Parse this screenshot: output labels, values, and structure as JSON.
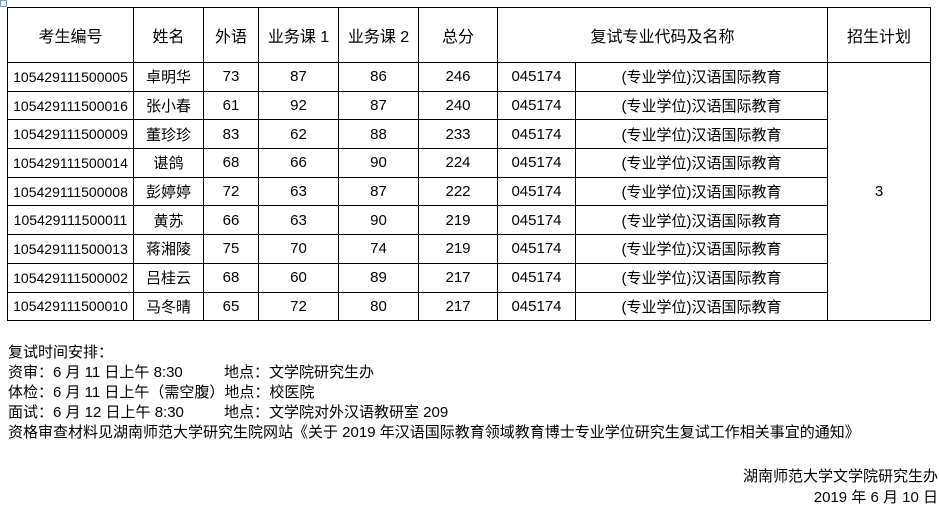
{
  "table": {
    "headers": [
      "考生编号",
      "姓名",
      "外语",
      "业务课 1",
      "业务课 2",
      "总分",
      "复试专业代码及名称",
      "招生计划"
    ],
    "rows": [
      {
        "id": "105429111500005",
        "name": "卓明华",
        "foreign": "73",
        "course1": "87",
        "course2": "86",
        "total": "246",
        "major_code": "045174",
        "major_name": "(专业学位)汉语国际教育"
      },
      {
        "id": "105429111500016",
        "name": "张小春",
        "foreign": "61",
        "course1": "92",
        "course2": "87",
        "total": "240",
        "major_code": "045174",
        "major_name": "(专业学位)汉语国际教育"
      },
      {
        "id": "105429111500009",
        "name": "董珍珍",
        "foreign": "83",
        "course1": "62",
        "course2": "88",
        "total": "233",
        "major_code": "045174",
        "major_name": "(专业学位)汉语国际教育"
      },
      {
        "id": "105429111500014",
        "name": "谌鸽",
        "foreign": "68",
        "course1": "66",
        "course2": "90",
        "total": "224",
        "major_code": "045174",
        "major_name": "(专业学位)汉语国际教育"
      },
      {
        "id": "105429111500008",
        "name": "彭婷婷",
        "foreign": "72",
        "course1": "63",
        "course2": "87",
        "total": "222",
        "major_code": "045174",
        "major_name": "(专业学位)汉语国际教育"
      },
      {
        "id": "105429111500011",
        "name": "黄苏",
        "foreign": "66",
        "course1": "63",
        "course2": "90",
        "total": "219",
        "major_code": "045174",
        "major_name": "(专业学位)汉语国际教育"
      },
      {
        "id": "105429111500013",
        "name": "蒋湘陵",
        "foreign": "75",
        "course1": "70",
        "course2": "74",
        "total": "219",
        "major_code": "045174",
        "major_name": "(专业学位)汉语国际教育"
      },
      {
        "id": "105429111500002",
        "name": "吕桂云",
        "foreign": "68",
        "course1": "60",
        "course2": "89",
        "total": "217",
        "major_code": "045174",
        "major_name": "(专业学位)汉语国际教育"
      },
      {
        "id": "105429111500010",
        "name": "马冬晴",
        "foreign": "65",
        "course1": "72",
        "course2": "80",
        "total": "217",
        "major_code": "045174",
        "major_name": "(专业学位)汉语国际教育"
      }
    ],
    "enrollment_plan": "3"
  },
  "notes": {
    "schedule_title": "复试时间安排：",
    "items": [
      {
        "time": "资审：6 月 11 日上午 8:30",
        "place": "地点：文学院研究生办"
      },
      {
        "time": "体检：6 月 11 日上午（需空腹）",
        "place": "地点：校医院"
      },
      {
        "time": "面试：6 月 12 日上午 8:30",
        "place": "地点：文学院对外汉语教研室 209"
      }
    ],
    "qualification_note": "资格审查材料见湖南师范大学研究生院网站《关于 2019 年汉语国际教育领域教育博士专业学位研究生复试工作相关事宜的通知》"
  },
  "signature": {
    "org": "湖南师范大学文学院研究生办",
    "date": "2019 年 6 月 10 日"
  },
  "colors": {
    "table_border": "#000000",
    "text": "#000000",
    "handle_border": "#7f9db9"
  }
}
